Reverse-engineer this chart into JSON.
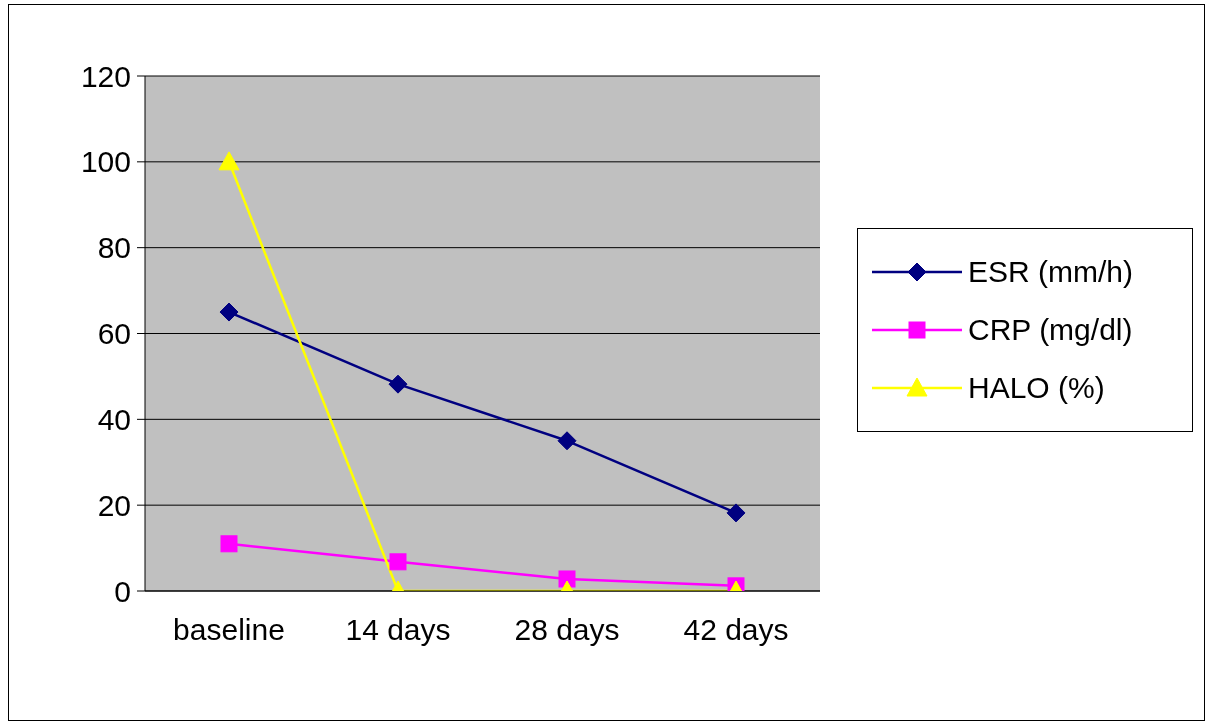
{
  "chart_data": {
    "type": "line",
    "categories": [
      "baseline",
      "14 days",
      "28 days",
      "42 days"
    ],
    "series": [
      {
        "name": "ESR (mm/h)",
        "color": "#000080",
        "marker": "diamond",
        "values": [
          65,
          48.2,
          35,
          18.2
        ]
      },
      {
        "name": "CRP (mg/dl)",
        "color": "#ff00ff",
        "marker": "square",
        "values": [
          11,
          6.8,
          2.8,
          1.2
        ]
      },
      {
        "name": "HALO (%)",
        "color": "#ffff00",
        "marker": "triangle",
        "values": [
          100,
          0,
          0,
          0
        ]
      }
    ],
    "ylim": [
      0,
      120
    ],
    "yticks": [
      0,
      20,
      40,
      60,
      80,
      100,
      120
    ],
    "grid": "y",
    "legend": "right"
  }
}
